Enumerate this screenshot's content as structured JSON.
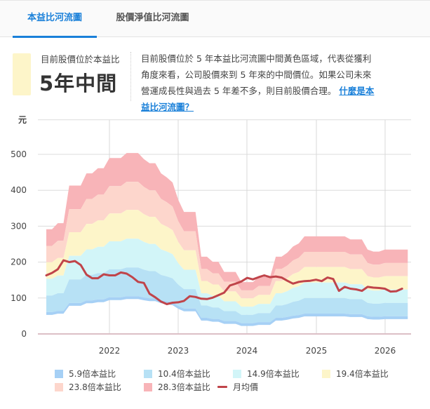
{
  "tabs": [
    {
      "label": "本益比河流圖",
      "active": true
    },
    {
      "label": "股價淨值比河流圖",
      "active": false
    }
  ],
  "summary": {
    "sub_label": "目前股價位於本益比",
    "big_label": "5年中間",
    "swatch_color": "#fdf5c9",
    "description": "目前股價位於 5 年本益比河流圖中間黃色區域，代表從獲利角度來看，公司股價來到 5 年來的中間價位。如果公司未來營運成長性與過去 5 年差不多，則目前股價合理。",
    "link_text": "什麼是本益比河流圖？"
  },
  "chart_data": {
    "type": "area",
    "title": "本益比河流圖",
    "ylabel": "元",
    "xlabel": "",
    "ylim": [
      0,
      500
    ],
    "yticks": [
      0,
      100,
      200,
      300,
      400,
      500
    ],
    "xticks": [
      "2022",
      "2023",
      "2024",
      "2025",
      "2026"
    ],
    "grid": true,
    "legend_position": "bottom",
    "start_month": "2021-02",
    "multipliers": [
      5.9,
      10.4,
      14.9,
      19.4,
      23.8,
      28.3
    ],
    "eps_ttm": [
      10.3,
      10.3,
      10.9,
      10.9,
      14.6,
      14.6,
      14.6,
      15.8,
      15.8,
      16.3,
      16.3,
      17.3,
      17.3,
      17.3,
      17.8,
      17.8,
      17.8,
      17.2,
      16.8,
      16.8,
      15.8,
      15.4,
      14.9,
      13.2,
      12.0,
      12.0,
      12.0,
      7.6,
      7.6,
      7.1,
      7.1,
      6.1,
      6.1,
      6.1,
      5.1,
      5.1,
      5.1,
      5.6,
      5.6,
      5.6,
      7.6,
      7.6,
      8.0,
      8.6,
      8.9,
      9.6,
      9.6,
      9.6,
      9.6,
      9.6,
      9.6,
      9.6,
      9.6,
      9.3,
      9.3,
      9.3,
      8.3,
      8.1,
      8.1,
      8.3,
      8.3,
      8.3,
      8.3,
      8.3
    ],
    "series": [
      {
        "name": "5.9倍本益比",
        "color": "#a6d0f5"
      },
      {
        "name": "10.4倍本益比",
        "color": "#b7e1f5"
      },
      {
        "name": "14.9倍本益比",
        "color": "#d2f5f8"
      },
      {
        "name": "19.4倍本益比",
        "color": "#fdf5c9"
      },
      {
        "name": "23.8倍本益比",
        "color": "#fdd6cc"
      },
      {
        "name": "28.3倍本益比",
        "color": "#f8b4b8"
      },
      {
        "name": "月均價",
        "color": "#c0444a",
        "type": "line",
        "values": [
          163,
          170,
          180,
          205,
          200,
          203,
          192,
          165,
          155,
          155,
          166,
          163,
          163,
          171,
          168,
          158,
          145,
          142,
          112,
          102,
          90,
          83,
          87,
          88,
          92,
          105,
          103,
          98,
          97,
          101,
          108,
          115,
          135,
          140,
          146,
          156,
          152,
          158,
          163,
          158,
          160,
          157,
          148,
          140,
          145,
          147,
          148,
          151,
          147,
          157,
          153,
          120,
          131,
          126,
          124,
          120,
          131,
          129,
          128,
          126,
          118,
          119,
          126
        ]
      }
    ]
  },
  "legend": [
    {
      "label": "5.9倍本益比",
      "color": "#a6d0f5",
      "kind": "box"
    },
    {
      "label": "10.4倍本益比",
      "color": "#b7e1f5",
      "kind": "box"
    },
    {
      "label": "14.9倍本益比",
      "color": "#d2f5f8",
      "kind": "box"
    },
    {
      "label": "19.4倍本益比",
      "color": "#fdf5c9",
      "kind": "box"
    },
    {
      "label": "23.8倍本益比",
      "color": "#fdd6cc",
      "kind": "box"
    },
    {
      "label": "28.3倍本益比",
      "color": "#f8b4b8",
      "kind": "box"
    },
    {
      "label": "月均價",
      "color": "#c0444a",
      "kind": "line"
    }
  ]
}
